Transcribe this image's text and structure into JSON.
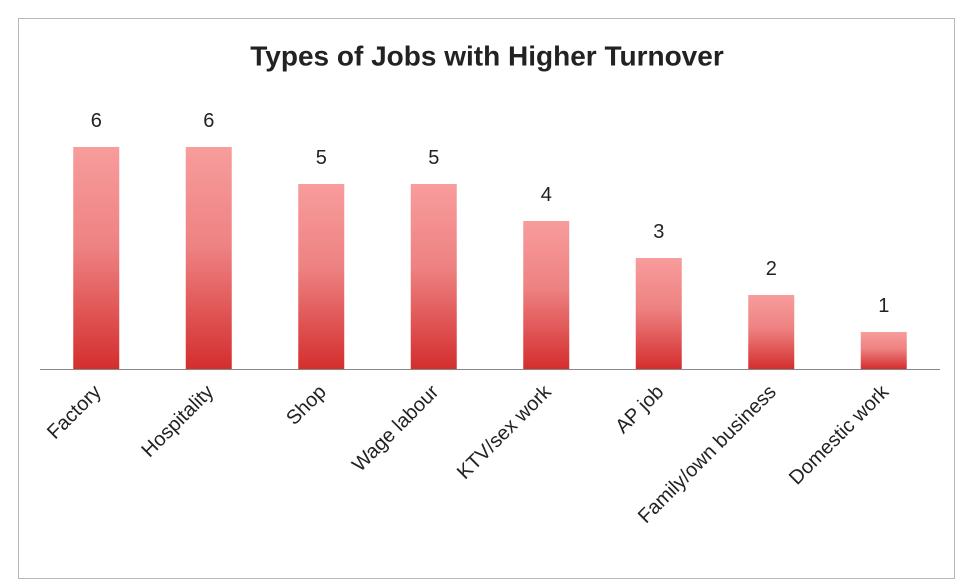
{
  "chart_data": {
    "type": "bar",
    "title": "Types of Jobs with Higher Turnover",
    "categories": [
      "Factory",
      "Hospitality",
      "Shop",
      "Wage labour",
      "KTV/sex work",
      "AP job",
      "Family/own business",
      "Domestic work"
    ],
    "values": [
      6,
      6,
      5,
      5,
      4,
      3,
      2,
      1
    ],
    "color": "#e04848"
  }
}
